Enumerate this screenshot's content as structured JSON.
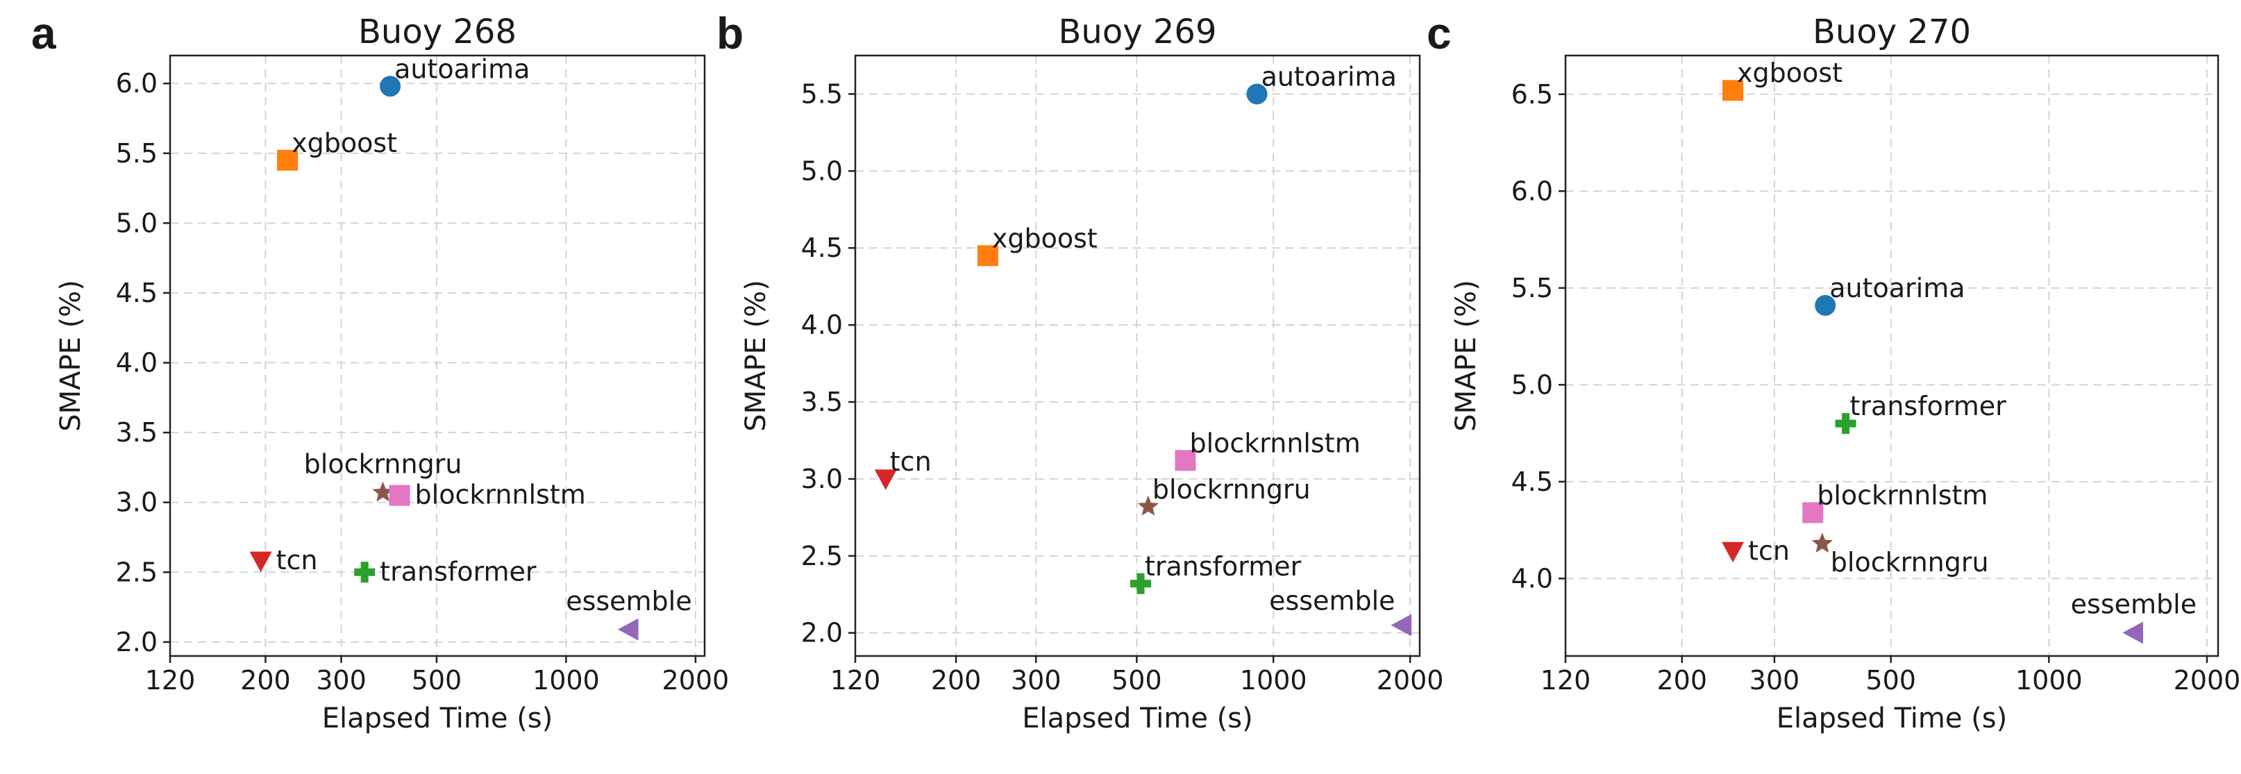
{
  "figure": {
    "xlabel": "Elapsed Time (s)",
    "ylabel": "SMAPE (%)"
  },
  "colors": {
    "autoarima": "#1f77b4",
    "xgboost": "#ff7f0e",
    "transformer": "#2ca02c",
    "tcn": "#d62728",
    "essemble": "#9467bd",
    "blockrnngru": "#8c564b",
    "blockrnnlstm": "#e377c2"
  },
  "chart_data": [
    {
      "type": "scatter",
      "panel": "a",
      "title": "Buoy 268",
      "xlabel": "Elapsed Time (s)",
      "ylabel": "SMAPE (%)",
      "xscale": "log",
      "xlim": [
        120,
        2100
      ],
      "ylim": [
        1.9,
        6.2
      ],
      "xticks": [
        120,
        200,
        300,
        500,
        1000,
        2000
      ],
      "xtick_labels": [
        "120",
        "200",
        "300",
        "500",
        "1000",
        "2000"
      ],
      "yticks": [
        2.0,
        2.5,
        3.0,
        3.5,
        4.0,
        4.5,
        5.0,
        5.5,
        6.0
      ],
      "ytick_labels": [
        "2.0",
        "2.5",
        "3.0",
        "3.5",
        "4.0",
        "4.5",
        "5.0",
        "5.5",
        "6.0"
      ],
      "grid": true,
      "points": [
        {
          "label": "autoarima",
          "x": 390,
          "y": 5.98,
          "marker": "circle",
          "label_pos": "upper-right"
        },
        {
          "label": "xgboost",
          "x": 225,
          "y": 5.45,
          "marker": "square",
          "label_pos": "upper-right"
        },
        {
          "label": "blockrnngru",
          "x": 375,
          "y": 3.07,
          "marker": "star",
          "label_pos": "above"
        },
        {
          "label": "blockrnnlstm",
          "x": 410,
          "y": 3.05,
          "marker": "square",
          "label_pos": "right"
        },
        {
          "label": "tcn",
          "x": 195,
          "y": 2.58,
          "marker": "triangle-down",
          "label_pos": "right"
        },
        {
          "label": "transformer",
          "x": 340,
          "y": 2.5,
          "marker": "plus",
          "label_pos": "right"
        },
        {
          "label": "essemble",
          "x": 1400,
          "y": 2.09,
          "marker": "triangle-left",
          "label_pos": "above"
        }
      ]
    },
    {
      "type": "scatter",
      "panel": "b",
      "title": "Buoy 269",
      "xlabel": "Elapsed Time (s)",
      "ylabel": "SMAPE (%)",
      "xscale": "log",
      "xlim": [
        120,
        2100
      ],
      "ylim": [
        1.85,
        5.75
      ],
      "xticks": [
        120,
        200,
        300,
        500,
        1000,
        2000
      ],
      "xtick_labels": [
        "120",
        "200",
        "300",
        "500",
        "1000",
        "2000"
      ],
      "yticks": [
        2.0,
        2.5,
        3.0,
        3.5,
        4.0,
        4.5,
        5.0,
        5.5
      ],
      "ytick_labels": [
        "2.0",
        "2.5",
        "3.0",
        "3.5",
        "4.0",
        "4.5",
        "5.0",
        "5.5"
      ],
      "grid": true,
      "points": [
        {
          "label": "autoarima",
          "x": 920,
          "y": 5.5,
          "marker": "circle",
          "label_pos": "upper-right"
        },
        {
          "label": "xgboost",
          "x": 235,
          "y": 4.45,
          "marker": "square",
          "label_pos": "upper-right"
        },
        {
          "label": "blockrnnlstm",
          "x": 640,
          "y": 3.12,
          "marker": "square",
          "label_pos": "upper-right"
        },
        {
          "label": "tcn",
          "x": 140,
          "y": 3.0,
          "marker": "triangle-down",
          "label_pos": "upper-right"
        },
        {
          "label": "blockrnngru",
          "x": 530,
          "y": 2.82,
          "marker": "star",
          "label_pos": "upper-right"
        },
        {
          "label": "transformer",
          "x": 510,
          "y": 2.32,
          "marker": "plus",
          "label_pos": "upper-right"
        },
        {
          "label": "essemble",
          "x": 1920,
          "y": 2.05,
          "marker": "triangle-left",
          "label_pos": "left-above"
        }
      ]
    },
    {
      "type": "scatter",
      "panel": "c",
      "title": "Buoy 270",
      "xlabel": "Elapsed Time (s)",
      "ylabel": "SMAPE (%)",
      "xscale": "log",
      "xlim": [
        120,
        2100
      ],
      "ylim": [
        3.6,
        6.7
      ],
      "xticks": [
        120,
        200,
        300,
        500,
        1000,
        2000
      ],
      "xtick_labels": [
        "120",
        "200",
        "300",
        "500",
        "1000",
        "2000"
      ],
      "yticks": [
        4.0,
        4.5,
        5.0,
        5.5,
        6.0,
        6.5
      ],
      "ytick_labels": [
        "4.0",
        "4.5",
        "5.0",
        "5.5",
        "6.0",
        "6.5"
      ],
      "grid": true,
      "points": [
        {
          "label": "xgboost",
          "x": 250,
          "y": 6.52,
          "marker": "square",
          "label_pos": "upper-right"
        },
        {
          "label": "autoarima",
          "x": 375,
          "y": 5.41,
          "marker": "circle",
          "label_pos": "upper-right"
        },
        {
          "label": "transformer",
          "x": 410,
          "y": 4.8,
          "marker": "plus",
          "label_pos": "upper-right"
        },
        {
          "label": "blockrnnlstm",
          "x": 355,
          "y": 4.34,
          "marker": "square",
          "label_pos": "upper-right"
        },
        {
          "label": "tcn",
          "x": 250,
          "y": 4.14,
          "marker": "triangle-down",
          "label_pos": "right"
        },
        {
          "label": "blockrnngru",
          "x": 370,
          "y": 4.18,
          "marker": "star",
          "label_pos": "lower-right"
        },
        {
          "label": "essemble",
          "x": 1450,
          "y": 3.72,
          "marker": "triangle-left",
          "label_pos": "above"
        }
      ]
    }
  ]
}
